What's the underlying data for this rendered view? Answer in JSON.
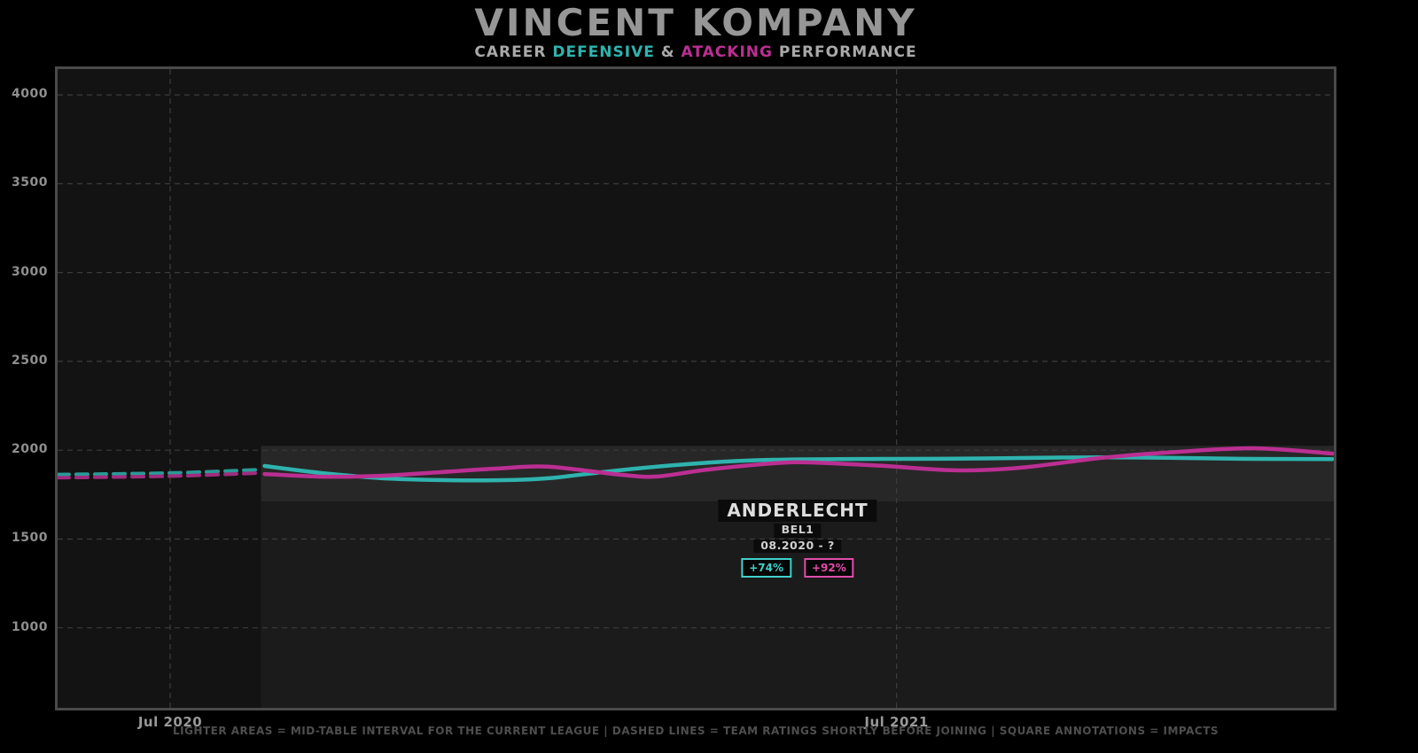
{
  "chart_data": {
    "type": "line",
    "title": "VINCENT KOMPANY",
    "subtitle_parts": [
      {
        "text": "CAREER ",
        "color_key": "muted"
      },
      {
        "text": "DEFENSIVE",
        "color_key": "defensive"
      },
      {
        "text": " & ",
        "color_key": "muted"
      },
      {
        "text": "ATACKING",
        "color_key": "atacking"
      },
      {
        "text": " PERFORMANCE",
        "color_key": "muted"
      }
    ],
    "colors": {
      "defensive": "#2fb3ae",
      "atacking": "#bb2f92",
      "defensive_bright": "#3fd1cb",
      "atacking_bright": "#e14da9",
      "defensive_prejoin": "#2a9a96",
      "atacking_prejoin": "#a02c7e",
      "muted": "#a9a9a9",
      "grid": "#3c3c3c",
      "band": "#272727",
      "band_lower": "#1b1b1b",
      "border": "#4a4a4a"
    },
    "x_axis": {
      "xlim": [
        2020.345,
        2022.102
      ],
      "ticks": [
        {
          "label": "Jul 2020",
          "value": 2020.5
        },
        {
          "label": "Jul 2021",
          "value": 2021.5
        }
      ]
    },
    "y_axis": {
      "ylim": [
        550,
        4145
      ],
      "ticks": [
        4000,
        3500,
        3000,
        2500,
        2000,
        1500,
        1000
      ]
    },
    "mid_table_band": {
      "x_start": 2020.625,
      "x_end": 2022.102,
      "y_top": 2025,
      "y_bottom": 1712
    },
    "lower_shade": {
      "x_start": 2020.625,
      "x_end": 2022.102,
      "y_top": 1712,
      "y_bottom": 550
    },
    "series": [
      {
        "name": "defensive-pre-join",
        "style": "dashed",
        "color_key": "defensive_prejoin",
        "points": [
          [
            2020.345,
            1863
          ],
          [
            2020.5,
            1872
          ],
          [
            2020.62,
            1890
          ]
        ]
      },
      {
        "name": "atacking-pre-join",
        "style": "dashed",
        "color_key": "atacking_prejoin",
        "points": [
          [
            2020.345,
            1845
          ],
          [
            2020.5,
            1854
          ],
          [
            2020.62,
            1871
          ]
        ]
      },
      {
        "name": "defensive",
        "style": "solid",
        "color_key": "defensive",
        "points": [
          [
            2020.63,
            1911
          ],
          [
            2020.71,
            1871
          ],
          [
            2020.79,
            1843
          ],
          [
            2020.87,
            1832
          ],
          [
            2020.95,
            1831
          ],
          [
            2021.02,
            1842
          ],
          [
            2021.12,
            1888
          ],
          [
            2021.24,
            1930
          ],
          [
            2021.33,
            1946
          ],
          [
            2021.48,
            1951
          ],
          [
            2021.58,
            1952
          ],
          [
            2021.67,
            1956
          ],
          [
            2021.78,
            1960
          ],
          [
            2021.87,
            1957
          ],
          [
            2021.99,
            1951
          ],
          [
            2022.1,
            1950
          ]
        ]
      },
      {
        "name": "atacking",
        "style": "solid",
        "color_key": "atacking",
        "points": [
          [
            2020.63,
            1866
          ],
          [
            2020.71,
            1851
          ],
          [
            2020.79,
            1856
          ],
          [
            2020.87,
            1876
          ],
          [
            2020.95,
            1897
          ],
          [
            2021.02,
            1907
          ],
          [
            2021.12,
            1862
          ],
          [
            2021.17,
            1852
          ],
          [
            2021.24,
            1891
          ],
          [
            2021.33,
            1926
          ],
          [
            2021.38,
            1931
          ],
          [
            2021.48,
            1912
          ],
          [
            2021.58,
            1887
          ],
          [
            2021.67,
            1901
          ],
          [
            2021.78,
            1956
          ],
          [
            2021.87,
            1986
          ],
          [
            2021.99,
            2011
          ],
          [
            2022.1,
            1981
          ]
        ]
      }
    ],
    "annotation": {
      "team": "ANDERLECHT",
      "league": "BEL1",
      "period": "08.2020 - ?",
      "defensive_impact": "+74%",
      "atacking_impact": "+92%"
    },
    "footnote": "LIGHTER AREAS = MID-TABLE INTERVAL FOR THE CURRENT LEAGUE | DASHED LINES = TEAM RATINGS SHORTLY BEFORE JOINING | SQUARE ANNOTATIONS = IMPACTS"
  }
}
